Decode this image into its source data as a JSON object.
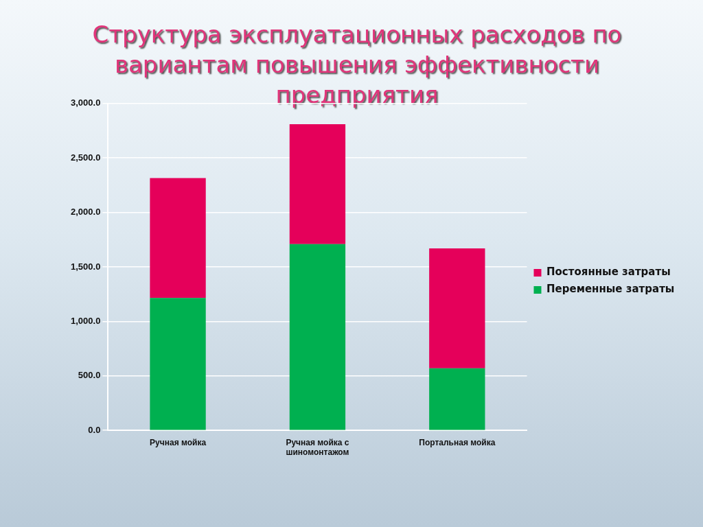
{
  "chart_data": {
    "type": "bar",
    "title": "Структура эксплуатационных расходов по вариантам повышения эффективности предприятия",
    "categories": [
      "Ручная мойка",
      "Ручная мойка с шиномонтажом",
      "Портальная мойка"
    ],
    "stacked": true,
    "series": [
      {
        "name": "Переменные затраты",
        "color": "#00b050",
        "values": [
          1215,
          1710,
          570
        ]
      },
      {
        "name": "Постоянные затраты",
        "color": "#e5005a",
        "values": [
          1100,
          1100,
          1100
        ]
      }
    ],
    "ylim": [
      0,
      3000
    ],
    "yticks": [
      {
        "value": 0,
        "label": "0.0"
      },
      {
        "value": 500,
        "label": "500.0"
      },
      {
        "value": 1000,
        "label": "1,000.0"
      },
      {
        "value": 1500,
        "label": "1,500.0"
      },
      {
        "value": 2000,
        "label": "2,000.0"
      },
      {
        "value": 2500,
        "label": "2,500.0"
      },
      {
        "value": 3000,
        "label": "3,000.0"
      }
    ],
    "grid": "y",
    "legend": "right"
  }
}
